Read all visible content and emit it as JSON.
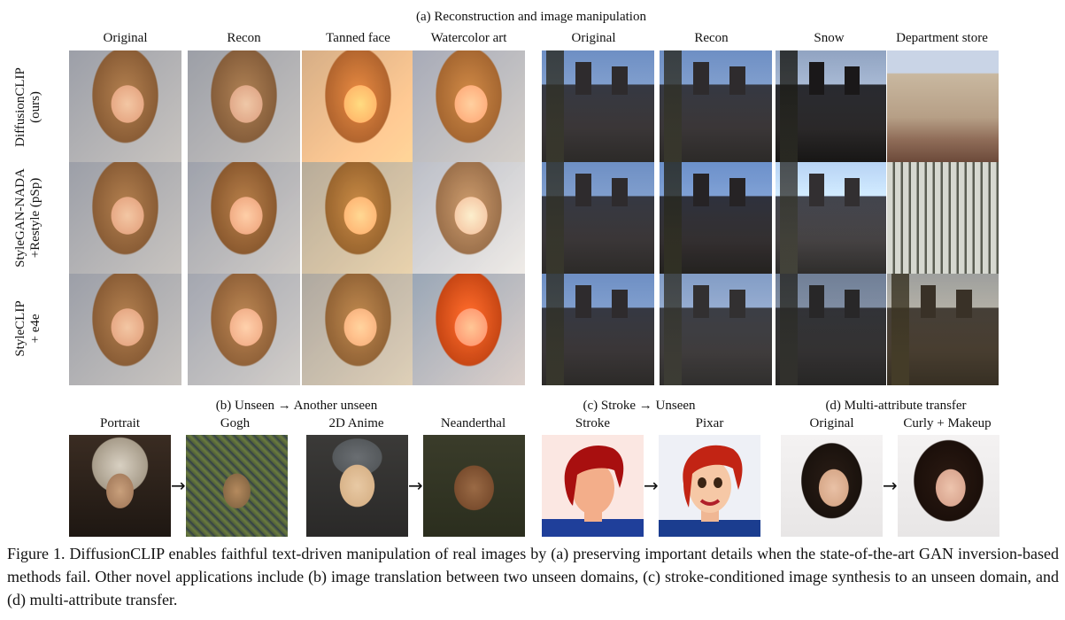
{
  "section_a": {
    "title": "(a) Reconstruction and image manipulation",
    "face_columns": [
      "Original",
      "Recon",
      "Tanned face",
      "Watercolor art"
    ],
    "church_columns": [
      "Original",
      "Recon",
      "Snow",
      "Department store"
    ],
    "rows": [
      {
        "line1": "DiffusionCLIP",
        "line2": "(ours)"
      },
      {
        "line1": "StyleGAN-NADA",
        "line2": "+Restyle (pSp)"
      },
      {
        "line1": "StyleCLIP",
        "line2": "+ e4e"
      }
    ]
  },
  "section_b": {
    "title": "(b) Unseen → Another unseen",
    "labels": [
      "Portrait",
      "Gogh",
      "2D Anime",
      "Neanderthal"
    ]
  },
  "section_c": {
    "title": "(c) Stroke → Unseen",
    "labels": [
      "Stroke",
      "Pixar"
    ]
  },
  "section_d": {
    "title": "(d) Multi-attribute transfer",
    "labels": [
      "Original",
      "Curly + Makeup"
    ]
  },
  "arrow_glyph": "→",
  "caption": "Figure 1.  DiffusionCLIP enables faithful text-driven manipulation of real images by (a) preserving important details when the state-of-the-art GAN inversion-based methods fail. Other novel applications include (b) image translation between two unseen domains, (c) stroke-conditioned image synthesis to an unseen domain, and (d) multi-attribute transfer."
}
